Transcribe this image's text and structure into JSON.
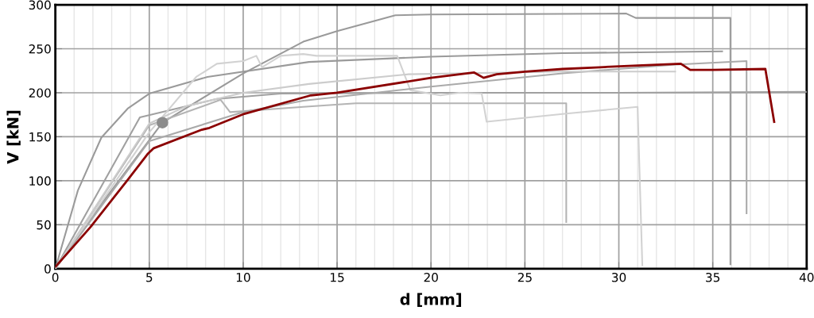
{
  "chart_data": {
    "type": "line",
    "xlabel": "d [mm]",
    "ylabel": "V [kN]",
    "xlim": [
      0,
      40
    ],
    "ylim": [
      0,
      300
    ],
    "xticks": [
      0,
      5,
      10,
      15,
      20,
      25,
      30,
      35,
      40
    ],
    "yticks": [
      0,
      50,
      100,
      150,
      200,
      250,
      300
    ],
    "grid": true,
    "legend": false,
    "marker": "none",
    "line_style": "solid",
    "series": [
      {
        "color": "#9a9a9a",
        "x": [
          0,
          2.5,
          5.7,
          10,
          13.2,
          15,
          18.1,
          20,
          30.4,
          30.9,
          35.94,
          35.94
        ],
        "values": [
          0,
          75,
          166,
          222,
          258,
          270,
          288,
          289,
          290,
          285,
          285,
          5
        ]
      },
      {
        "color": "#9a9a9a",
        "x": [
          0,
          1.2,
          2.45,
          3.85,
          5,
          8.1,
          13.5,
          20,
          27,
          35.5
        ],
        "values": [
          0,
          89,
          149,
          182,
          199,
          218,
          235,
          241,
          245,
          247
        ]
      },
      {
        "color": "#a0a0a0",
        "x": [
          0,
          4.5,
          8.6,
          12,
          20,
          30,
          40
        ],
        "values": [
          0,
          172,
          193,
          199,
          200,
          200,
          201
        ]
      },
      {
        "color": "#b4b4b4",
        "x": [
          0,
          5,
          8.8,
          9.3,
          13.2,
          16,
          27.2,
          27.2
        ],
        "values": [
          0,
          163,
          192,
          178,
          184,
          188,
          188,
          53
        ]
      },
      {
        "color": "#d2d2d2",
        "x": [
          0,
          5,
          7.5,
          8.6,
          10,
          10.7,
          11,
          12,
          13.2,
          13.9,
          18.2,
          18.9,
          20.5,
          21.5,
          22.7,
          22.96,
          27.1,
          31,
          31.25
        ],
        "values": [
          0,
          155,
          218,
          233,
          236,
          242,
          229,
          242,
          244,
          242,
          242,
          203,
          197,
          200,
          199,
          167,
          176,
          184,
          4
        ]
      },
      {
        "color": "#aaaaaa",
        "x": [
          0,
          5,
          10,
          13.2,
          20,
          27,
          33,
          36.8,
          36.8
        ],
        "values": [
          0,
          145,
          178,
          191,
          207,
          222,
          232,
          236,
          63
        ]
      },
      {
        "color": "#cccccc",
        "x": [
          0,
          5,
          7,
          10,
          13.5,
          18.8,
          27,
          33
        ],
        "values": [
          0,
          165,
          185,
          200,
          210,
          221,
          224,
          224
        ]
      },
      {
        "type": "scatter",
        "marker": "circle",
        "color": "#8c8c8c",
        "x": [
          5.7
        ],
        "values": [
          166
        ]
      },
      {
        "color": "#8b0000",
        "x": [
          0,
          1.86,
          3.85,
          4.9,
          5.24,
          7.8,
          8.2,
          10.06,
          13.6,
          15,
          20,
          22.3,
          22.8,
          23.5,
          25,
          27,
          29,
          31,
          33.3,
          33.8,
          35,
          37.8,
          38.27
        ],
        "values": [
          2,
          47,
          101,
          130,
          137,
          158,
          160,
          176,
          197,
          200,
          217,
          223,
          217,
          221,
          224,
          227,
          229,
          231,
          233,
          226,
          226,
          227,
          167
        ]
      }
    ]
  }
}
